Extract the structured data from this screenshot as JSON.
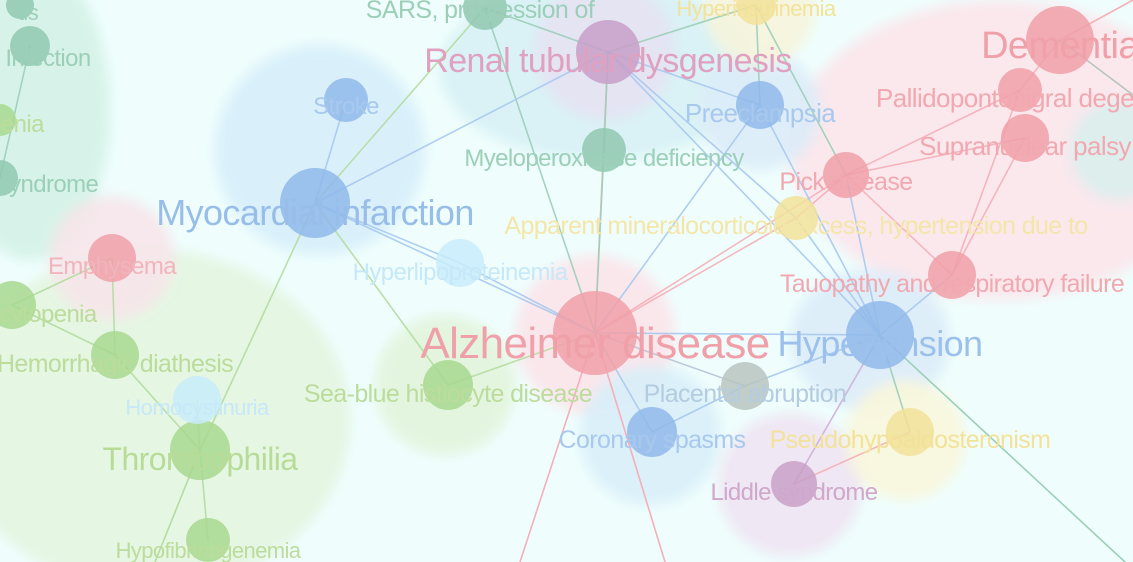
{
  "colors": {
    "background": "#effefd",
    "red": "#f0a0a8",
    "blue": "#8fb8ea",
    "green": "#a8d890",
    "teal": "#90c8b0",
    "yellow": "#f2e29a",
    "purple": "#c8a0c8",
    "gray": "#b8c4c0",
    "lightblue": "#c8ecfa"
  },
  "nodes": [
    {
      "id": "n1",
      "label": "Alzheimer disease",
      "color": "red"
    },
    {
      "id": "n2",
      "label": "Hypertension",
      "color": "blue"
    },
    {
      "id": "n3",
      "label": "Myocardial infarction",
      "color": "blue"
    },
    {
      "id": "n4",
      "label": "Renal tubular dysgenesis",
      "color": "purple"
    },
    {
      "id": "n5",
      "label": "Dementia",
      "color": "red"
    },
    {
      "id": "n6",
      "label": "Thrombophilia",
      "color": "green"
    },
    {
      "id": "n7",
      "label": "Stroke",
      "color": "blue"
    },
    {
      "id": "n8",
      "label": "Preeclampsia",
      "color": "blue"
    },
    {
      "id": "n9",
      "label": "Myeloperoxidase deficiency",
      "color": "teal"
    },
    {
      "id": "n10",
      "label": "Pick disease",
      "color": "red"
    },
    {
      "id": "n11",
      "label": "Pallidopontonigral degeneration",
      "color": "red"
    },
    {
      "id": "n12",
      "label": "Supranuclear palsy",
      "color": "red"
    },
    {
      "id": "n13",
      "label": "Apparent mineralocorticoid excess, hypertension due to",
      "color": "yellow"
    },
    {
      "id": "n14",
      "label": "Tauopathy and respiratory failure",
      "color": "red"
    },
    {
      "id": "n15",
      "label": "Hyperlipoproteinemia",
      "color": "lightblue"
    },
    {
      "id": "n16",
      "label": "Emphysema",
      "color": "red"
    },
    {
      "id": "n17",
      "label": "Hemorrhagic diathesis",
      "color": "green"
    },
    {
      "id": "n18",
      "label": "Sea-blue histiocyte disease",
      "color": "green"
    },
    {
      "id": "n19",
      "label": "Placental abruption",
      "color": "gray"
    },
    {
      "id": "n20",
      "label": "Coronary spasms",
      "color": "blue"
    },
    {
      "id": "n21",
      "label": "Pseudohypoaldosteronism",
      "color": "yellow"
    },
    {
      "id": "n22",
      "label": "Liddle syndrome",
      "color": "purple"
    },
    {
      "id": "n23",
      "label": "Homocystinuria",
      "color": "lightblue"
    },
    {
      "id": "n24",
      "label": "Hypofibrinogenemia",
      "color": "green"
    },
    {
      "id": "n25",
      "label": "SARS, progression of",
      "color": "teal"
    },
    {
      "id": "n26",
      "label": "Hyperinsulinemia",
      "color": "yellow"
    },
    {
      "id": "n27",
      "label": "Infection",
      "color": "teal"
    },
    {
      "id": "n28",
      "label": "syndrome",
      "color": "teal"
    },
    {
      "id": "n29",
      "label": "penia",
      "color": "green"
    },
    {
      "id": "n30",
      "label": "cytopenia",
      "color": "green"
    },
    {
      "id": "n31",
      "label": "tis",
      "color": "teal"
    }
  ]
}
